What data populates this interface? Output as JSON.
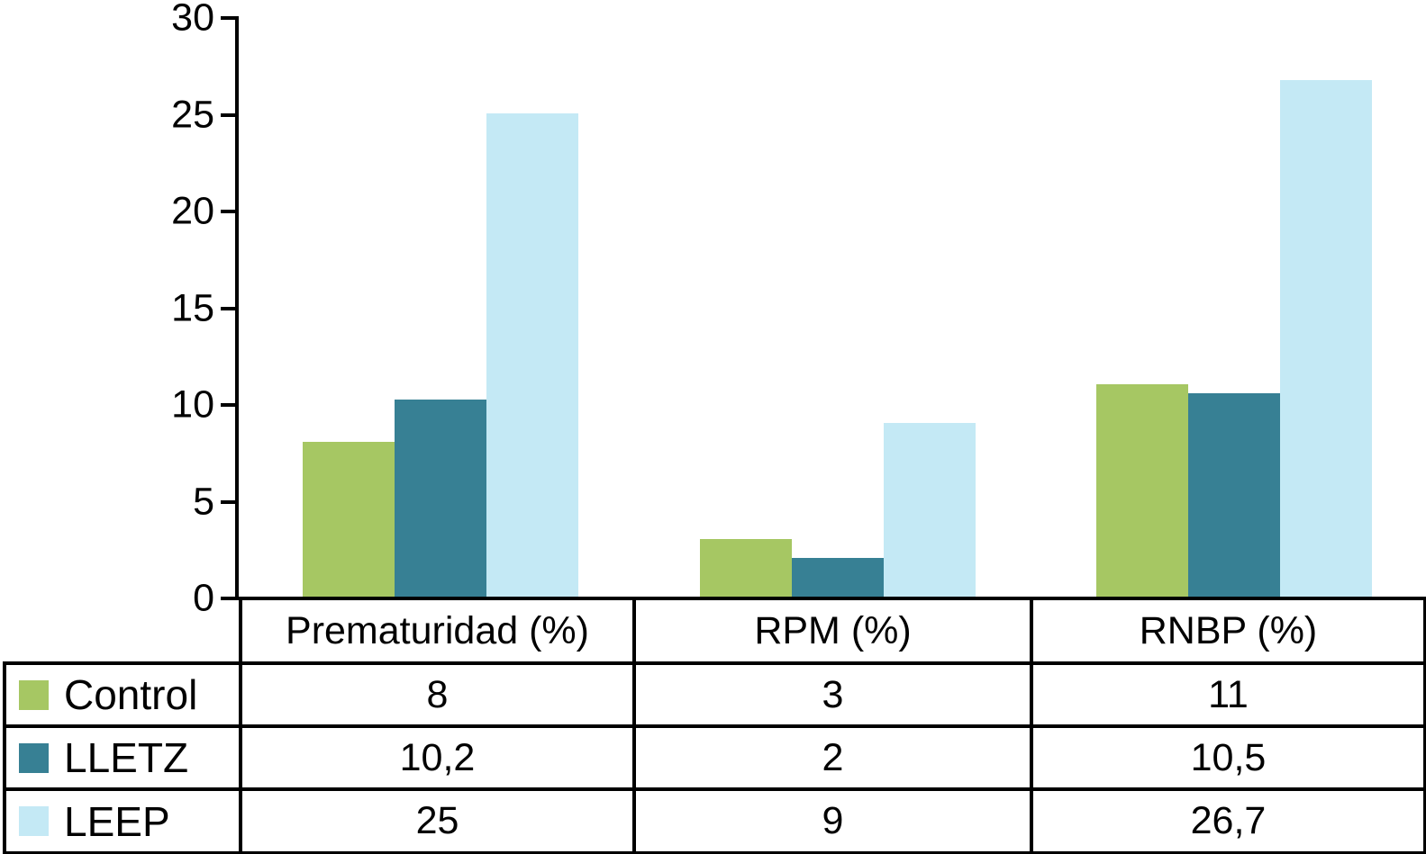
{
  "chart_data": {
    "type": "bar",
    "categories": [
      "Prematuridad (%)",
      "RPM (%)",
      "RNBP (%)"
    ],
    "series": [
      {
        "name": "Control",
        "color": "#a6c763",
        "values": [
          8,
          3,
          11
        ],
        "display": [
          "8",
          "3",
          "11"
        ]
      },
      {
        "name": "LLETZ",
        "color": "#378094",
        "values": [
          10.2,
          2,
          10.5
        ],
        "display": [
          "10,2",
          "2",
          "10,5"
        ]
      },
      {
        "name": "LEEP",
        "color": "#c4e9f5",
        "values": [
          25,
          9,
          26.7
        ],
        "display": [
          "25",
          "9",
          "26,7"
        ]
      }
    ],
    "title": "",
    "xlabel": "",
    "ylabel": "",
    "ylim": [
      0,
      30
    ],
    "yticks": [
      0,
      5,
      10,
      15,
      20,
      25,
      30
    ],
    "grid": false,
    "legend_position": "table-left",
    "axis_color": "#000000",
    "decimal_separator": ","
  }
}
